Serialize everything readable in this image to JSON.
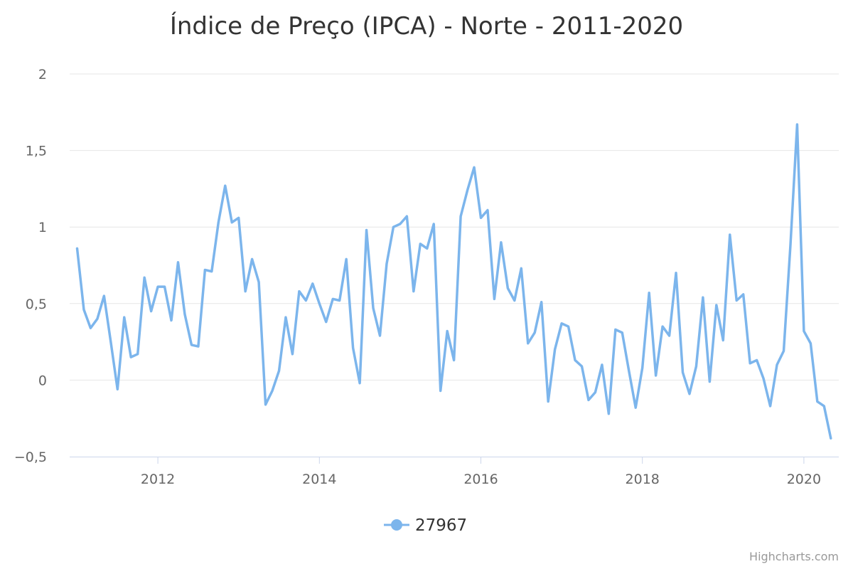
{
  "chart_data": {
    "type": "line",
    "title": "Índice de Preço (IPCA) - Norte - 2011-2020",
    "xlabel": "",
    "ylabel": "",
    "ylim": [
      -0.5,
      2
    ],
    "y_ticks": [
      "2",
      "1,5",
      "1",
      "0,5",
      "0",
      "-0,5"
    ],
    "y_tick_values": [
      2,
      1.5,
      1,
      0.5,
      0,
      -0.5
    ],
    "x_ticks": [
      "2012",
      "2014",
      "2016",
      "2018",
      "2020"
    ],
    "x_tick_values": [
      2012,
      2014,
      2016,
      2018,
      2020
    ],
    "x_start": "2011-01",
    "x_end": "2020-05",
    "grid": true,
    "legend_position": "bottom-center",
    "credits": "Highcharts.com",
    "series": [
      {
        "name": "27967",
        "color": "#7cb5ec",
        "x": [
          "2011-01",
          "2011-02",
          "2011-03",
          "2011-04",
          "2011-05",
          "2011-06",
          "2011-07",
          "2011-08",
          "2011-09",
          "2011-10",
          "2011-11",
          "2011-12",
          "2012-01",
          "2012-02",
          "2012-03",
          "2012-04",
          "2012-05",
          "2012-06",
          "2012-07",
          "2012-08",
          "2012-09",
          "2012-10",
          "2012-11",
          "2012-12",
          "2013-01",
          "2013-02",
          "2013-03",
          "2013-04",
          "2013-05",
          "2013-06",
          "2013-07",
          "2013-08",
          "2013-09",
          "2013-10",
          "2013-11",
          "2013-12",
          "2014-01",
          "2014-02",
          "2014-03",
          "2014-04",
          "2014-05",
          "2014-06",
          "2014-07",
          "2014-08",
          "2014-09",
          "2014-10",
          "2014-11",
          "2014-12",
          "2015-01",
          "2015-02",
          "2015-03",
          "2015-04",
          "2015-05",
          "2015-06",
          "2015-07",
          "2015-08",
          "2015-09",
          "2015-10",
          "2015-11",
          "2015-12",
          "2016-01",
          "2016-02",
          "2016-03",
          "2016-04",
          "2016-05",
          "2016-06",
          "2016-07",
          "2016-08",
          "2016-09",
          "2016-10",
          "2016-11",
          "2016-12",
          "2017-01",
          "2017-02",
          "2017-03",
          "2017-04",
          "2017-05",
          "2017-06",
          "2017-07",
          "2017-08",
          "2017-09",
          "2017-10",
          "2017-11",
          "2017-12",
          "2018-01",
          "2018-02",
          "2018-03",
          "2018-04",
          "2018-05",
          "2018-06",
          "2018-07",
          "2018-08",
          "2018-09",
          "2018-10",
          "2018-11",
          "2018-12",
          "2019-01",
          "2019-02",
          "2019-03",
          "2019-04",
          "2019-05",
          "2019-06",
          "2019-07",
          "2019-08",
          "2019-09",
          "2019-10",
          "2019-11",
          "2019-12",
          "2020-01",
          "2020-02",
          "2020-03",
          "2020-04",
          "2020-05"
        ],
        "values": [
          0.86,
          0.46,
          0.34,
          0.4,
          0.55,
          0.25,
          -0.06,
          0.41,
          0.15,
          0.17,
          0.67,
          0.45,
          0.61,
          0.61,
          0.39,
          0.77,
          0.43,
          0.23,
          0.22,
          0.72,
          0.71,
          1.03,
          1.27,
          1.03,
          1.06,
          0.58,
          0.79,
          0.64,
          -0.16,
          -0.07,
          0.06,
          0.41,
          0.17,
          0.58,
          0.52,
          0.63,
          0.5,
          0.38,
          0.53,
          0.52,
          0.79,
          0.21,
          -0.02,
          0.98,
          0.47,
          0.29,
          0.76,
          1.0,
          1.02,
          1.07,
          0.58,
          0.89,
          0.86,
          1.02,
          -0.07,
          0.32,
          0.13,
          1.07,
          1.24,
          1.39,
          1.06,
          1.11,
          0.53,
          0.9,
          0.6,
          0.52,
          0.73,
          0.24,
          0.31,
          0.51,
          -0.14,
          0.2,
          0.37,
          0.35,
          0.13,
          0.09,
          -0.13,
          -0.08,
          0.1,
          -0.22,
          0.33,
          0.31,
          0.06,
          -0.18,
          0.08,
          0.57,
          0.03,
          0.35,
          0.29,
          0.7,
          0.05,
          -0.09,
          0.09,
          0.54,
          -0.01,
          0.49,
          0.26,
          0.95,
          0.52,
          0.56,
          0.11,
          0.13,
          0.01,
          -0.17,
          0.1,
          0.19,
          0.88,
          1.67,
          0.32,
          0.24,
          -0.14,
          -0.17,
          -0.38
        ]
      }
    ]
  }
}
